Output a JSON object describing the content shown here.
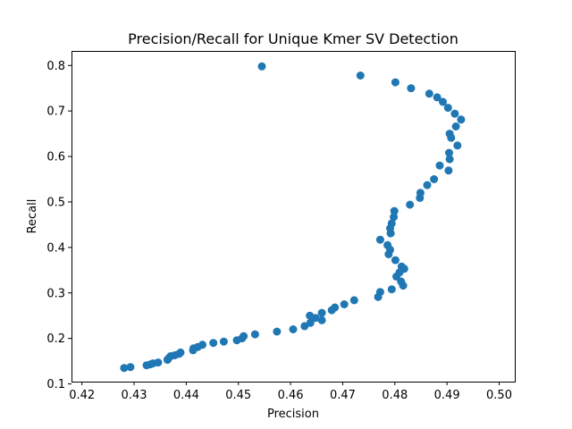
{
  "chart_data": {
    "type": "scatter",
    "title": "Precision/Recall for Unique Kmer SV Detection",
    "xlabel": "Precision",
    "ylabel": "Recall",
    "xlim": [
      0.418,
      0.503
    ],
    "ylim": [
      0.105,
      0.83
    ],
    "xticks": [
      0.42,
      0.43,
      0.44,
      0.45,
      0.46,
      0.47,
      0.48,
      0.49,
      0.5
    ],
    "xtick_labels": [
      "0.42",
      "0.43",
      "0.44",
      "0.45",
      "0.46",
      "0.47",
      "0.48",
      "0.49",
      "0.50"
    ],
    "yticks": [
      0.1,
      0.2,
      0.3,
      0.4,
      0.5,
      0.6,
      0.7,
      0.8
    ],
    "ytick_labels": [
      "0.1",
      "0.2",
      "0.3",
      "0.4",
      "0.5",
      "0.6",
      "0.7",
      "0.8"
    ],
    "grid": false,
    "marker_color": "#1f77b4",
    "series": [
      {
        "x": [
          0.4545,
          0.4734,
          0.4801,
          0.4831,
          0.4866,
          0.4881,
          0.4892,
          0.4902,
          0.4915,
          0.4927,
          0.4917,
          0.4905,
          0.4908,
          0.492,
          0.4904,
          0.4905,
          0.4886,
          0.4903,
          0.4875,
          0.4862,
          0.4849,
          0.4848,
          0.4829,
          0.4799,
          0.4798,
          0.4794,
          0.4791,
          0.4772,
          0.4792,
          0.4786,
          0.4791,
          0.4788,
          0.4801,
          0.4813,
          0.4818,
          0.4809,
          0.4803,
          0.4812,
          0.4816,
          0.4794,
          0.4772,
          0.4768,
          0.4722,
          0.4703,
          0.4685,
          0.4679,
          0.466,
          0.466,
          0.4648,
          0.4637,
          0.4638,
          0.4627,
          0.4605,
          0.4574,
          0.4532,
          0.451,
          0.4507,
          0.4497,
          0.4472,
          0.4452,
          0.4431,
          0.4422,
          0.4414,
          0.4413,
          0.4389,
          0.4386,
          0.4378,
          0.437,
          0.4366,
          0.4364,
          0.4346,
          0.4336,
          0.4331,
          0.4324,
          0.4293,
          0.4281
        ],
        "y": [
          0.798,
          0.778,
          0.763,
          0.75,
          0.738,
          0.73,
          0.72,
          0.707,
          0.694,
          0.681,
          0.666,
          0.65,
          0.641,
          0.624,
          0.608,
          0.594,
          0.58,
          0.569,
          0.55,
          0.537,
          0.52,
          0.509,
          0.494,
          0.48,
          0.467,
          0.453,
          0.442,
          0.417,
          0.431,
          0.405,
          0.395,
          0.385,
          0.372,
          0.358,
          0.353,
          0.345,
          0.336,
          0.325,
          0.316,
          0.308,
          0.302,
          0.291,
          0.284,
          0.275,
          0.268,
          0.262,
          0.256,
          0.24,
          0.245,
          0.25,
          0.234,
          0.227,
          0.22,
          0.215,
          0.209,
          0.205,
          0.2,
          0.196,
          0.193,
          0.19,
          0.186,
          0.181,
          0.178,
          0.174,
          0.169,
          0.166,
          0.163,
          0.161,
          0.156,
          0.153,
          0.147,
          0.145,
          0.143,
          0.141,
          0.137,
          0.135
        ]
      }
    ]
  }
}
